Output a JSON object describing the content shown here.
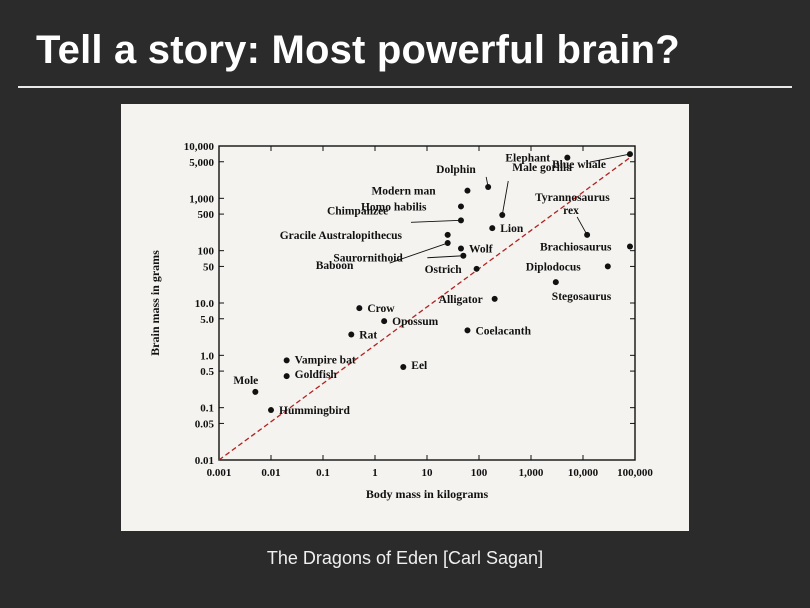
{
  "slide": {
    "title": "Tell a story: Most powerful brain?",
    "caption": "The Dragons of Eden [Carl Sagan]"
  },
  "colors": {
    "background": "#2b2b2b",
    "title_text": "#ffffff",
    "figure_background": "#f4f3ef",
    "points": "#111111",
    "trend_line": "#b22222"
  },
  "chart_data": {
    "type": "scatter",
    "xlabel": "Body mass in kilograms",
    "ylabel": "Brain mass in grams",
    "x_scale": "log",
    "y_scale": "log",
    "xlim": [
      0.001,
      100000
    ],
    "ylim": [
      0.01,
      10000
    ],
    "grid": false,
    "x_ticks": [
      {
        "value": 0.001,
        "label": "0.001"
      },
      {
        "value": 0.01,
        "label": "0.01"
      },
      {
        "value": 0.1,
        "label": "0.1"
      },
      {
        "value": 1,
        "label": "1"
      },
      {
        "value": 10,
        "label": "10"
      },
      {
        "value": 100,
        "label": "100"
      },
      {
        "value": 1000,
        "label": "1,000"
      },
      {
        "value": 10000,
        "label": "10,000"
      },
      {
        "value": 100000,
        "label": "100,000"
      }
    ],
    "y_ticks": [
      {
        "value": 0.01,
        "label": "0.01"
      },
      {
        "value": 0.05,
        "label": "0.05"
      },
      {
        "value": 0.1,
        "label": "0.1"
      },
      {
        "value": 0.5,
        "label": "0.5"
      },
      {
        "value": 1,
        "label": "1.0"
      },
      {
        "value": 5,
        "label": "5.0"
      },
      {
        "value": 10,
        "label": "10.0"
      },
      {
        "value": 50,
        "label": "50"
      },
      {
        "value": 100,
        "label": "100"
      },
      {
        "value": 500,
        "label": "500"
      },
      {
        "value": 1000,
        "label": "1,000"
      },
      {
        "value": 5000,
        "label": "5,000"
      },
      {
        "value": 10000,
        "label": "10,000"
      }
    ],
    "reference_line": {
      "x": [
        0.001,
        80000
      ],
      "y": [
        0.01,
        6000
      ],
      "style": "dashed"
    },
    "points": [
      {
        "name": "Mole",
        "x": 0.005,
        "y": 0.2
      },
      {
        "name": "Hummingbird",
        "x": 0.01,
        "y": 0.09
      },
      {
        "name": "Goldfish",
        "x": 0.02,
        "y": 0.4
      },
      {
        "name": "Vampire bat",
        "x": 0.02,
        "y": 0.8
      },
      {
        "name": "Crow",
        "x": 0.5,
        "y": 8
      },
      {
        "name": "Rat",
        "x": 0.35,
        "y": 2.5
      },
      {
        "name": "Opossum",
        "x": 1.5,
        "y": 4.5
      },
      {
        "name": "Eel",
        "x": 3.5,
        "y": 0.6
      },
      {
        "name": "Coelacanth",
        "x": 60,
        "y": 3
      },
      {
        "name": "Alligator",
        "x": 200,
        "y": 12
      },
      {
        "name": "Ostrich",
        "x": 90,
        "y": 45
      },
      {
        "name": "Saurornithoid",
        "x": 50,
        "y": 80
      },
      {
        "name": "Baboon",
        "x": 25,
        "y": 140
      },
      {
        "name": "Chimpanzee",
        "x": 45,
        "y": 380
      },
      {
        "name": "Wolf",
        "x": 45,
        "y": 110
      },
      {
        "name": "Gracile Australopithecus",
        "x": 25,
        "y": 200
      },
      {
        "name": "Homo habilis",
        "x": 45,
        "y": 700
      },
      {
        "name": "Modern man",
        "x": 60,
        "y": 1400
      },
      {
        "name": "Dolphin",
        "x": 150,
        "y": 1650
      },
      {
        "name": "Lion",
        "x": 180,
        "y": 270
      },
      {
        "name": "Male gorilla",
        "x": 280,
        "y": 480
      },
      {
        "name": "Tyrannosaurus rex",
        "x": 12000,
        "y": 200
      },
      {
        "name": "Elephant",
        "x": 5000,
        "y": 6000
      },
      {
        "name": "Blue whale",
        "x": 80000,
        "y": 7000
      },
      {
        "name": "Brachiosaurus",
        "x": 80000,
        "y": 120
      },
      {
        "name": "Diplodocus",
        "x": 30000,
        "y": 50
      },
      {
        "name": "Stegosaurus",
        "x": 3000,
        "y": 25
      }
    ]
  }
}
